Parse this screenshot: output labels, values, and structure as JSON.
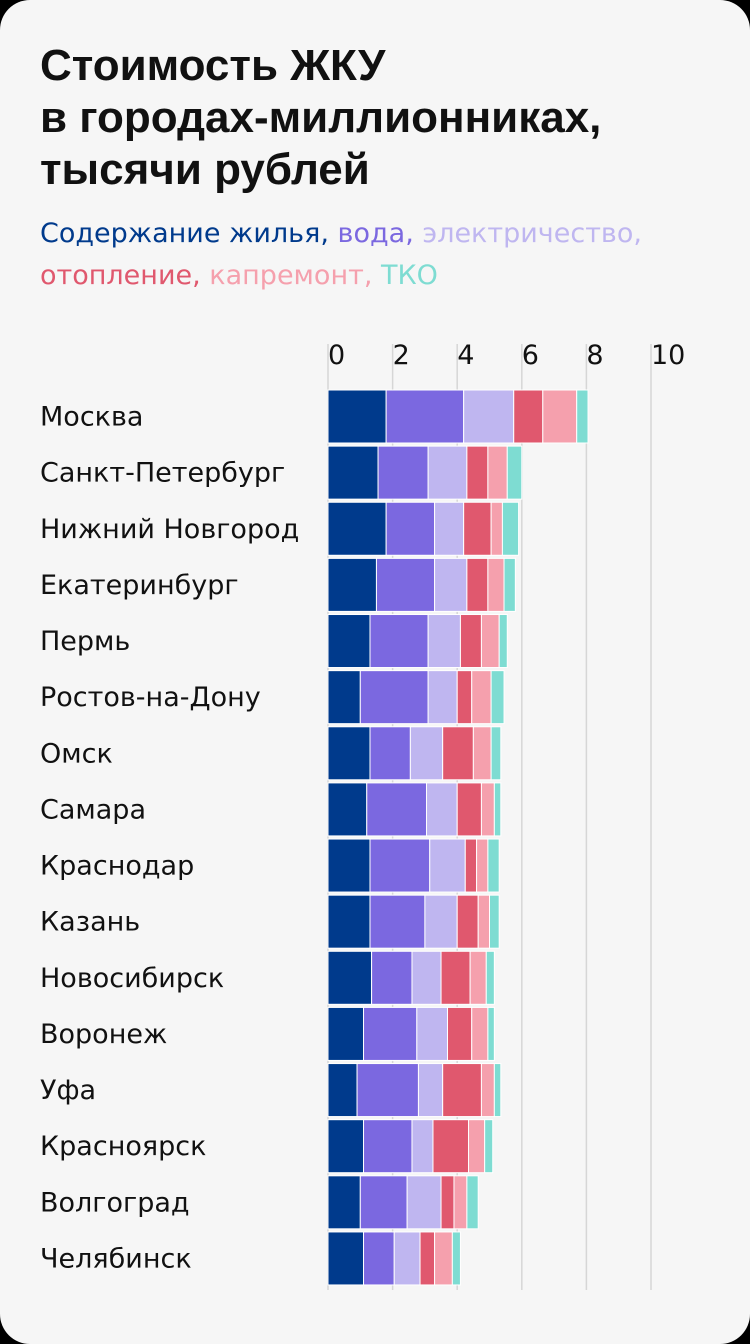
{
  "title_lines": [
    "Стоимость ЖКУ",
    "в городах-миллионниках,",
    "тысячи рублей"
  ],
  "chart_data": {
    "type": "bar",
    "orientation": "horizontal",
    "stacked": true,
    "xlim": [
      0,
      10
    ],
    "ticks": [
      0,
      2,
      4,
      6,
      8,
      10
    ],
    "tick_labels": [
      "0",
      "2",
      "4",
      "6",
      "8",
      "10"
    ],
    "grid": true,
    "legend_position": "top, inline under the title",
    "categories": [
      "Москва",
      "Санкт-Петербург",
      "Нижний Новгород",
      "Екатеринбург",
      "Пермь",
      "Ростов-на-Дону",
      "Омск",
      "Самара",
      "Краснодар",
      "Казань",
      "Новосибирск",
      "Воронеж",
      "Уфа",
      "Красноярск",
      "Волгоград",
      "Челябинск"
    ],
    "series": [
      {
        "name": "Содержание жилья",
        "color": "#003a8c",
        "values": [
          1.8,
          1.55,
          1.8,
          1.5,
          1.3,
          1.0,
          1.3,
          1.2,
          1.3,
          1.3,
          1.35,
          1.1,
          0.9,
          1.1,
          1.0,
          1.1
        ]
      },
      {
        "name": "вода",
        "color": "#7b68e0",
        "values": [
          2.4,
          1.55,
          1.5,
          1.8,
          1.8,
          2.1,
          1.25,
          1.85,
          1.85,
          1.7,
          1.25,
          1.65,
          1.9,
          1.5,
          1.45,
          0.95
        ]
      },
      {
        "name": "электричество",
        "color": "#bfb6f0",
        "values": [
          1.55,
          1.2,
          0.9,
          1.0,
          1.0,
          0.9,
          1.0,
          0.95,
          1.1,
          1.0,
          0.9,
          0.95,
          0.75,
          0.65,
          1.05,
          0.8
        ]
      },
      {
        "name": "отопление",
        "color": "#e0586e",
        "values": [
          0.9,
          0.65,
          0.85,
          0.65,
          0.65,
          0.45,
          0.95,
          0.75,
          0.35,
          0.65,
          0.9,
          0.75,
          1.2,
          1.1,
          0.4,
          0.45
        ]
      },
      {
        "name": "капремонт",
        "color": "#f5a0ad",
        "values": [
          1.05,
          0.6,
          0.35,
          0.5,
          0.55,
          0.6,
          0.55,
          0.4,
          0.35,
          0.35,
          0.5,
          0.5,
          0.4,
          0.5,
          0.4,
          0.55
        ]
      },
      {
        "name": "ТКО",
        "color": "#7edcd2",
        "values": [
          0.35,
          0.45,
          0.5,
          0.35,
          0.25,
          0.4,
          0.3,
          0.2,
          0.35,
          0.3,
          0.25,
          0.2,
          0.2,
          0.25,
          0.35,
          0.25
        ]
      }
    ]
  },
  "colors": {
    "card_background": "#f6f6f6",
    "outer_background": "#000000",
    "text": "#111111",
    "grid": "#d6d6d6",
    "bar_divider": "#ffffff"
  }
}
